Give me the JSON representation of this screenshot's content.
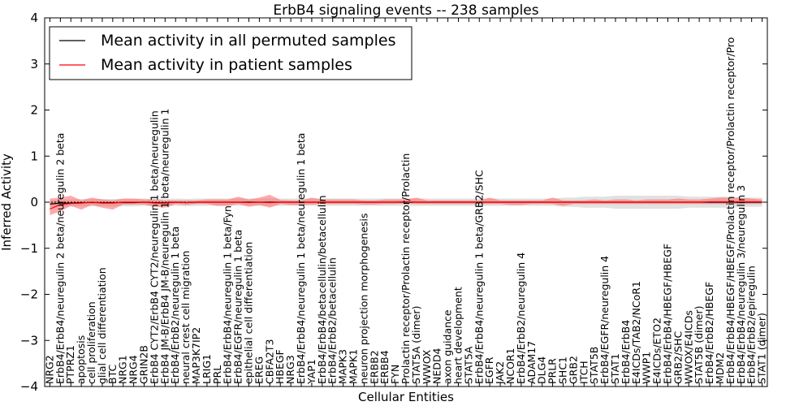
{
  "chart_data": {
    "type": "line",
    "title": "ErbB4 signaling events -- 238 samples",
    "xlabel": "Cellular Entities",
    "ylabel": "Inferred Activity",
    "ylim": [
      -4,
      4
    ],
    "yticks": [
      -4,
      -3,
      -2,
      -1,
      0,
      1,
      2,
      3,
      4
    ],
    "ytick_labels": [
      "−4",
      "−3",
      "−2",
      "−1",
      "0",
      "1",
      "2",
      "3",
      "4"
    ],
    "grid": false,
    "legend_position": "top-left",
    "categories": [
      "NRG2",
      "ErbB4/ErbB4/neuregulin 2 beta/neuregulin 2 beta",
      "PTPRZ1",
      "apoptosis",
      "cell proliferation",
      "glial cell differentiation",
      "BTC",
      "NRG1",
      "NRG4",
      "GRIN2B",
      "ErbB4 CYT2/ErbB4 CYT2/neuregulin 1 beta/neuregulin",
      "ErbB4 JM-B/ErbB4 JM-B/neuregulin 1 beta/neuregulin 1",
      "ErbB4/ErbB2/neuregulin 1 beta",
      "neural crest cell migration",
      "MAP3K7IP2",
      "LRIG1",
      "PRL",
      "ErbB4/ErbB4/neuregulin 1 beta/Fyn",
      "ErbB4/EGFR/neuregulin 1 beta",
      "epithelial cell differentiation",
      "EREG",
      "CBFA2T3",
      "HBEGF",
      "NRG3",
      "ErbB4/ErbB4/neuregulin 1 beta/neuregulin 1 beta",
      "YAP1",
      "ErbB4/ErbB4/betacellulin/betacellulin",
      "ErbB4/ErbB2/betacellulin",
      "MAPK3",
      "MAPK1",
      "neuron projection morphogenesis",
      "ERBB2",
      "ERBB4",
      "FYN",
      "Prolactin receptor/Prolactin receptor/Prolactin",
      "STAT5A (dimer)",
      "WWOX",
      "NEDD4",
      "axon guidance",
      "heart development",
      "STAT5A",
      "ErbB4/ErbB4/neuregulin 1 beta/GRB2/SHC",
      "EGFR",
      "JAK2",
      "NCOR1",
      "ErbB4/ErbB2/neuregulin 4",
      "ADAM17",
      "DLG4",
      "PRLR",
      "SHC1",
      "GRB2",
      "ITCH",
      "STAT5B",
      "ErbB4/EGFR/neuregulin 4",
      "STAT1",
      "ErbB4/ErbB4",
      "E4ICDs/TAB2/NCoR1",
      "WWP1",
      "E4ICDs/ETO2",
      "ErbB4/ErbB4/HBEGF/HBEGF",
      "GRB2/SHC",
      "WWOX/E4ICDs",
      "STAT5B (dimer)",
      "ErbB4/ErbB2/HBEGF",
      "MDM2",
      "ErbB4/ErbB4/HBEGF/HBEGF/Prolactin receptor/Prolactin receptor/Pro",
      "ErbB4/ErbB4/neuregulin 3/neuregulin 3",
      "ErbB4/ErbB2/epiregulin",
      "STAT1 (dimer)"
    ],
    "series": [
      {
        "name": "Mean activity in all permuted samples",
        "color": "#000000",
        "band_color": "#c8c8c8",
        "values": [
          -0.04,
          -0.02,
          -0.02,
          -0.01,
          -0.01,
          -0.01,
          -0.01,
          -0.01,
          -0.01,
          0.0,
          -0.01,
          -0.01,
          0.0,
          -0.01,
          0.0,
          0.0,
          0.0,
          0.0,
          0.0,
          0.0,
          0.0,
          0.0,
          0.0,
          0.0,
          0.0,
          0.0,
          0.0,
          0.0,
          0.0,
          0.0,
          0.0,
          0.0,
          0.0,
          0.0,
          0.0,
          0.0,
          0.0,
          0.0,
          0.0,
          0.0,
          0.0,
          0.0,
          0.0,
          0.0,
          0.0,
          0.0,
          0.0,
          0.0,
          0.0,
          0.0,
          0.0,
          0.0,
          0.0,
          0.0,
          0.0,
          0.0,
          0.0,
          0.0,
          0.0,
          0.0,
          0.0,
          0.0,
          0.0,
          0.0,
          0.0,
          0.0,
          0.0,
          0.0,
          0.0
        ],
        "lower": [
          -0.12,
          -0.1,
          -0.1,
          -0.09,
          -0.09,
          -0.09,
          -0.09,
          -0.09,
          -0.09,
          -0.08,
          -0.09,
          -0.09,
          -0.08,
          -0.09,
          -0.08,
          -0.08,
          -0.08,
          -0.08,
          -0.08,
          -0.08,
          -0.08,
          -0.08,
          -0.08,
          -0.08,
          -0.08,
          -0.08,
          -0.08,
          -0.08,
          -0.08,
          -0.08,
          -0.08,
          -0.08,
          -0.08,
          -0.08,
          -0.08,
          -0.08,
          -0.08,
          -0.08,
          -0.08,
          -0.08,
          -0.08,
          -0.08,
          -0.08,
          -0.08,
          -0.08,
          -0.08,
          -0.08,
          -0.08,
          -0.08,
          -0.1,
          -0.1,
          -0.12,
          -0.12,
          -0.12,
          -0.14,
          -0.14,
          -0.14,
          -0.14,
          -0.14,
          -0.14,
          -0.14,
          -0.12,
          -0.12,
          -0.12,
          -0.12,
          -0.12,
          -0.1,
          -0.1,
          -0.1
        ],
        "upper": [
          0.04,
          0.06,
          0.06,
          0.07,
          0.07,
          0.07,
          0.07,
          0.07,
          0.07,
          0.08,
          0.07,
          0.07,
          0.08,
          0.07,
          0.08,
          0.08,
          0.08,
          0.08,
          0.08,
          0.08,
          0.08,
          0.08,
          0.08,
          0.08,
          0.08,
          0.08,
          0.08,
          0.08,
          0.08,
          0.08,
          0.08,
          0.08,
          0.08,
          0.08,
          0.08,
          0.08,
          0.08,
          0.08,
          0.08,
          0.08,
          0.08,
          0.08,
          0.08,
          0.08,
          0.08,
          0.08,
          0.08,
          0.08,
          0.08,
          0.1,
          0.1,
          0.12,
          0.12,
          0.12,
          0.14,
          0.14,
          0.14,
          0.14,
          0.14,
          0.14,
          0.14,
          0.12,
          0.12,
          0.12,
          0.12,
          0.12,
          0.1,
          0.1,
          0.1
        ]
      },
      {
        "name": "Mean activity in patient samples",
        "color": "#ff0000",
        "band_color": "#ff6464",
        "values": [
          -0.15,
          -0.05,
          -0.03,
          -0.02,
          0.0,
          -0.02,
          -0.02,
          0.0,
          0.0,
          0.0,
          -0.02,
          -0.02,
          0.0,
          -0.01,
          0.0,
          0.0,
          0.0,
          0.0,
          0.0,
          -0.01,
          0.0,
          -0.01,
          0.0,
          0.0,
          0.0,
          0.0,
          0.0,
          0.0,
          0.0,
          0.0,
          0.0,
          0.0,
          0.0,
          0.0,
          0.01,
          0.0,
          0.0,
          0.0,
          0.0,
          0.0,
          0.0,
          0.0,
          0.0,
          0.0,
          0.0,
          0.0,
          0.0,
          0.0,
          0.0,
          0.0,
          0.0,
          0.0,
          0.0,
          0.0,
          0.0,
          0.0,
          0.0,
          0.0,
          0.0,
          0.0,
          0.0,
          0.0,
          0.0,
          0.01,
          0.01,
          0.01,
          0.01,
          0.01,
          0.01
        ],
        "lower": [
          -0.28,
          -0.2,
          -0.08,
          -0.16,
          -0.06,
          -0.12,
          -0.16,
          -0.05,
          -0.05,
          -0.05,
          -0.1,
          -0.12,
          -0.04,
          -0.06,
          -0.04,
          -0.04,
          -0.08,
          -0.08,
          -0.04,
          -0.1,
          -0.06,
          -0.12,
          -0.04,
          -0.06,
          -0.06,
          -0.05,
          -0.04,
          -0.04,
          -0.04,
          -0.04,
          -0.05,
          -0.05,
          -0.04,
          -0.04,
          -0.03,
          -0.04,
          -0.04,
          -0.04,
          -0.04,
          -0.04,
          -0.04,
          -0.04,
          -0.04,
          -0.04,
          -0.06,
          -0.06,
          -0.04,
          -0.04,
          -0.04,
          -0.08,
          -0.04,
          -0.04,
          -0.04,
          -0.04,
          -0.04,
          -0.04,
          -0.04,
          -0.04,
          -0.04,
          -0.04,
          -0.04,
          -0.04,
          -0.04,
          -0.04,
          -0.04,
          -0.04,
          -0.04,
          -0.04,
          -0.04
        ],
        "upper": [
          0.08,
          0.1,
          0.14,
          0.04,
          0.1,
          0.06,
          0.04,
          0.08,
          0.08,
          0.06,
          0.06,
          0.04,
          0.04,
          0.04,
          0.04,
          0.06,
          0.06,
          0.06,
          0.12,
          0.06,
          0.1,
          0.16,
          0.05,
          0.04,
          0.04,
          0.1,
          0.06,
          0.06,
          0.06,
          0.06,
          0.04,
          0.04,
          0.06,
          0.06,
          0.06,
          0.1,
          0.04,
          0.04,
          0.04,
          0.04,
          0.04,
          0.04,
          0.1,
          0.04,
          0.04,
          0.04,
          0.04,
          0.04,
          0.1,
          0.04,
          0.04,
          0.04,
          0.06,
          0.04,
          0.06,
          0.06,
          0.04,
          0.06,
          0.06,
          0.06,
          0.08,
          0.06,
          0.06,
          0.08,
          0.1,
          0.1,
          0.1,
          0.08,
          0.06
        ]
      }
    ]
  }
}
